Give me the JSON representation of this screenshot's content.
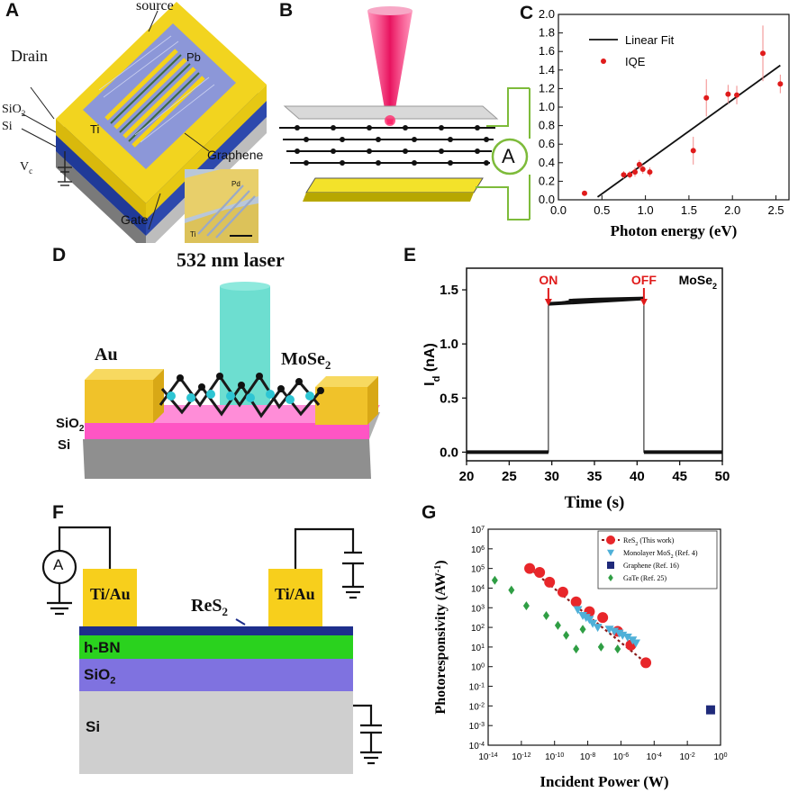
{
  "panels": {
    "A": {
      "label": "A",
      "source": "source",
      "drain": "Drain",
      "pb": "Pb",
      "ti": "Ti",
      "sio2": "SiO",
      "sio2_sub": "2",
      "si": "Si",
      "vc": "V",
      "vc_sub": "c",
      "graphene": "Graphene",
      "gate": "Gate",
      "inset_pd": "Pd",
      "inset_ti": "Ti"
    },
    "B": {
      "label": "B",
      "ammeter": "A"
    },
    "D": {
      "label": "D",
      "laser": "532 nm laser",
      "au": "Au",
      "mose2": "MoSe",
      "mose2_sub": "2",
      "sio2": "SiO",
      "sio2_sub": "2",
      "si": "Si"
    },
    "F": {
      "label": "F",
      "ammeter": "A",
      "contact_left": "Ti/Au",
      "contact_right": "Ti/Au",
      "res2": "ReS",
      "res2_sub": "2",
      "hbn": "h-BN",
      "sio2": "SiO",
      "sio2_sub": "2",
      "si": "Si"
    }
  },
  "chart_data": [
    {
      "panel": "C",
      "label": "C",
      "type": "scatter",
      "xlabel": "Photon energy (eV)",
      "ylabel": "",
      "xlim": [
        0.0,
        2.65
      ],
      "ylim": [
        0.0,
        2.0
      ],
      "xticks": [
        "0.0",
        "0.5",
        "1.0",
        "1.5",
        "2.0",
        "2.5"
      ],
      "yticks": [
        "0.0",
        "0.2",
        "0.4",
        "0.6",
        "0.8",
        "1.0",
        "1.2",
        "1.4",
        "1.6",
        "1.8",
        "2.0"
      ],
      "legend": [
        "Linear Fit",
        "IQE"
      ],
      "legend_position": "top-left",
      "series": [
        {
          "name": "IQE",
          "x": [
            0.3,
            0.75,
            0.82,
            0.88,
            0.93,
            0.97,
            1.05,
            1.55,
            1.7,
            1.95,
            2.05,
            2.35,
            2.55
          ],
          "y": [
            0.07,
            0.27,
            0.27,
            0.3,
            0.38,
            0.33,
            0.3,
            0.53,
            1.1,
            1.14,
            1.13,
            1.58,
            1.25
          ],
          "err": [
            0.02,
            0.04,
            0.04,
            0.05,
            0.05,
            0.05,
            0.05,
            0.15,
            0.2,
            0.1,
            0.1,
            0.3,
            0.1
          ]
        },
        {
          "name": "Linear Fit",
          "x": [
            0.45,
            2.55
          ],
          "y": [
            0.03,
            1.45
          ]
        }
      ]
    },
    {
      "panel": "E",
      "label": "E",
      "type": "line",
      "title": "MoSe",
      "title_sub": "2",
      "xlabel": "Time (s)",
      "ylabel": "I",
      "ylabel_sub": "d",
      "ylabel_unit": "(nA)",
      "xlim": [
        20,
        50
      ],
      "ylim": [
        -0.08,
        1.7
      ],
      "xticks": [
        "20",
        "25",
        "30",
        "35",
        "40",
        "45",
        "50"
      ],
      "yticks": [
        "0.0",
        "0.5",
        "1.0",
        "1.5"
      ],
      "annotations": [
        "ON",
        "OFF"
      ],
      "on_time": 29.6,
      "off_time": 40.8,
      "series": [
        {
          "name": "Id",
          "x": [
            20,
            29.6,
            29.6,
            30.5,
            32,
            35,
            40.8,
            40.8,
            50
          ],
          "y": [
            0.0,
            0.0,
            1.37,
            1.38,
            1.4,
            1.41,
            1.42,
            0.0,
            0.0
          ]
        }
      ]
    },
    {
      "panel": "G",
      "label": "G",
      "type": "scatter",
      "xlabel": "Incident Power (W)",
      "ylabel": "Photoresponsivity (AW",
      "ylabel_sup": "-1",
      "ylabel_close": ")",
      "x_scale": "log",
      "y_scale": "log",
      "xlim_exp": [
        -14,
        0
      ],
      "ylim_exp": [
        -4,
        7
      ],
      "x_ticks_exp": [
        "-14",
        "-12",
        "-10",
        "-8",
        "-6",
        "-4",
        "-2",
        "0"
      ],
      "y_ticks_exp": [
        "-4",
        "-3",
        "-2",
        "-1",
        "0",
        "1",
        "2",
        "3",
        "4",
        "5",
        "6",
        "7"
      ],
      "tick_base": "10",
      "legend_position": "top-right",
      "series": [
        {
          "name": "ReS2 (This work)",
          "legend": "ReS",
          "legend_sub": "2",
          "legend_tail": " (This work)",
          "color": "#e8262a",
          "marker": "circle",
          "x_exp": [
            -11.5,
            -10.9,
            -10.3,
            -9.5,
            -8.7,
            -7.9,
            -7.1,
            -6.2,
            -5.4,
            -4.5
          ],
          "y_exp": [
            5.0,
            4.8,
            4.3,
            3.8,
            3.3,
            2.8,
            2.5,
            1.8,
            1.1,
            0.2
          ]
        },
        {
          "name": "Monolayer MoS2 (Ref. 4)",
          "legend": "Monolayer MoS",
          "legend_sub": "2",
          "legend_tail": " (Ref. 4)",
          "color": "#4fb0d8",
          "marker": "triangle-down",
          "x_exp": [
            -8.6,
            -8.3,
            -8.1,
            -7.9,
            -7.7,
            -7.4,
            -6.7,
            -6.4,
            -6.1,
            -5.9,
            -5.6,
            -5.3,
            -5.1
          ],
          "y_exp": [
            2.9,
            2.6,
            2.5,
            2.4,
            2.2,
            2.0,
            1.9,
            1.8,
            1.7,
            1.6,
            1.5,
            1.35,
            1.2
          ]
        },
        {
          "name": "Graphene (Ref. 16)",
          "legend": "Graphene",
          "legend_sub": "",
          "legend_tail": " (Ref. 16)",
          "color": "#1f2a7a",
          "marker": "square",
          "x_exp": [
            -0.6
          ],
          "y_exp": [
            -2.2
          ]
        },
        {
          "name": "GaTe (Ref. 25)",
          "legend": "GaTe",
          "legend_sub": "",
          "legend_tail": " (Ref. 25)",
          "color": "#2f9e44",
          "marker": "diamond",
          "x_exp": [
            -13.6,
            -12.6,
            -11.7,
            -10.5,
            -9.8,
            -9.3,
            -8.7,
            -8.3,
            -7.2,
            -6.2
          ],
          "y_exp": [
            4.4,
            3.9,
            3.1,
            2.6,
            2.1,
            1.6,
            0.9,
            1.9,
            1.0,
            0.9
          ]
        }
      ],
      "fit_line": {
        "color": "#8b1a1a",
        "x_exp": [
          -11.5,
          -4.5
        ],
        "y_exp": [
          5.0,
          0.2
        ]
      }
    }
  ]
}
